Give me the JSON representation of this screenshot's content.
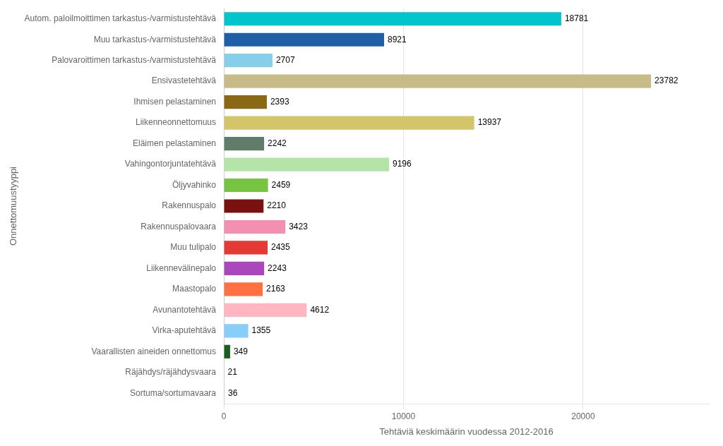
{
  "chart_data": {
    "type": "bar",
    "orientation": "horizontal",
    "xlabel": "Tehtäviä keskimäärin vuodessa 2012-2016",
    "ylabel": "Onnettomuustyyppi",
    "categories": [
      "Autom. paloilmoittimen tarkastus-/varmistustehtävä",
      "Muu tarkastus-/varmistustehtävä",
      "Palovaroittimen tarkastus-/varmistustehtävä",
      "Ensivastetehtävä",
      "Ihmisen pelastaminen",
      "Liikenneonnettomuus",
      "Eläimen pelastaminen",
      "Vahingontorjuntatehtävä",
      "Öljyvahinko",
      "Rakennuspalo",
      "Rakennuspalovaara",
      "Muu tulipalo",
      "Liikennevälinepalo",
      "Maastopalo",
      "Avunantotehtävä",
      "Virka-aputehtävä",
      "Vaarallisten aineiden onnettomus",
      "Räjähdys/räjähdysvaara",
      "Sortuma/sortumavaara"
    ],
    "values": [
      18781,
      8921,
      2707,
      23782,
      2393,
      13937,
      2242,
      9196,
      2459,
      2210,
      3423,
      2435,
      2243,
      2163,
      4612,
      1355,
      349,
      21,
      36
    ],
    "colors": [
      "#00C5CD",
      "#1E5FA8",
      "#87CEEB",
      "#C8BB8A",
      "#8B6914",
      "#D4C46A",
      "#607D6B",
      "#B5E4A8",
      "#76C442",
      "#7B1010",
      "#F48FB1",
      "#E53935",
      "#AB47BC",
      "#FF7043",
      "#FFB6C1",
      "#87CEFA",
      "#1B5E20",
      "#D2C9A8",
      "#D2C9A8"
    ],
    "xlim": [
      0,
      27000
    ],
    "xticks": [
      0,
      10000,
      20000
    ],
    "grid": true,
    "data_labels": true
  }
}
